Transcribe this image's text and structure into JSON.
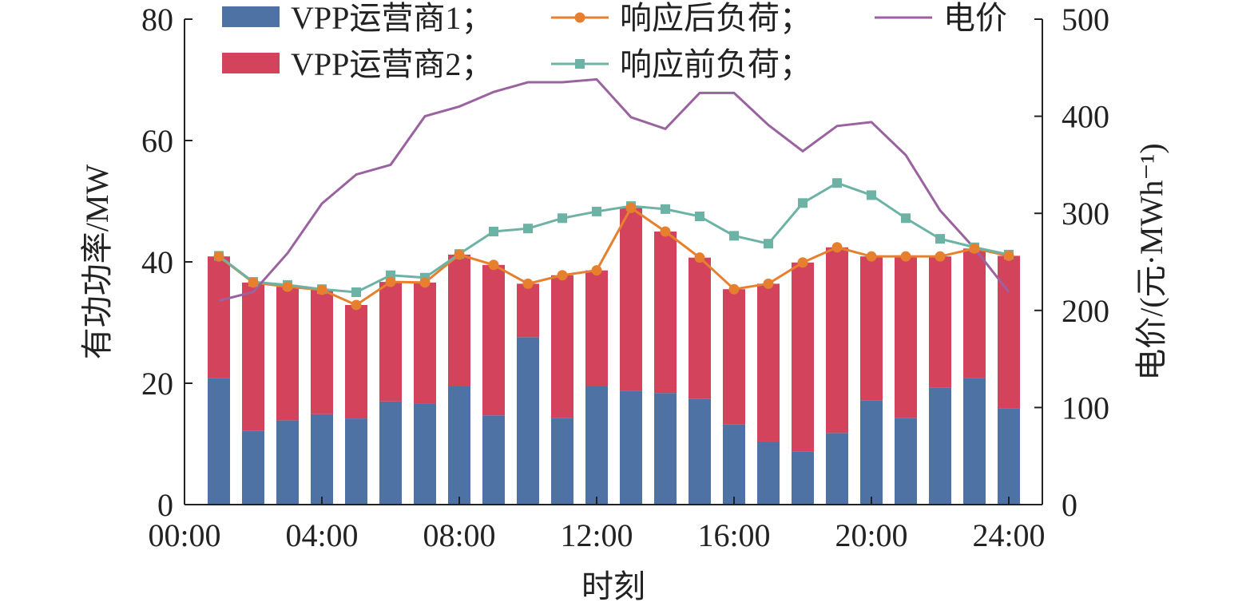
{
  "chart_data": {
    "type": "bar",
    "xlabel": "时刻",
    "ylabel": "有功功率/MW",
    "y2label": "电价/(元·MWh⁻¹)",
    "ylim": [
      0,
      80
    ],
    "y2lim": [
      0,
      500
    ],
    "yticks": [
      "0",
      "20",
      "40",
      "60",
      "80"
    ],
    "y2ticks": [
      "0",
      "100",
      "200",
      "300",
      "400",
      "500"
    ],
    "xticks": [
      "00:00",
      "04:00",
      "08:00",
      "12:00",
      "16:00",
      "20:00",
      "24:00"
    ],
    "x": [
      1,
      2,
      3,
      4,
      5,
      6,
      7,
      8,
      9,
      10,
      11,
      12,
      13,
      14,
      15,
      16,
      17,
      18,
      19,
      20,
      21,
      22,
      23,
      24
    ],
    "legend_position": "top",
    "series": [
      {
        "name": "VPP运营商1；",
        "kind": "stacked-bar",
        "axis": "left",
        "color": "#4f72a5",
        "values": [
          20.9,
          12.2,
          13.9,
          14.9,
          14.2,
          17.0,
          16.7,
          19.6,
          14.7,
          27.6,
          14.3,
          19.6,
          18.7,
          18.4,
          17.4,
          13.2,
          10.4,
          8.7,
          11.8,
          17.2,
          14.3,
          19.3,
          20.9,
          15.9
        ]
      },
      {
        "name": "VPP运营商2；",
        "kind": "stacked-bar",
        "axis": "left",
        "color": "#d3435b",
        "values": [
          20.0,
          24.4,
          22.0,
          20.5,
          18.7,
          19.7,
          19.9,
          21.6,
          24.8,
          8.8,
          23.5,
          19.0,
          30.2,
          26.6,
          23.3,
          22.3,
          26.0,
          31.2,
          30.6,
          23.7,
          26.6,
          21.6,
          21.3,
          25.1
        ]
      },
      {
        "name": "响应后负荷；",
        "kind": "line-circle",
        "axis": "left",
        "color": "#e6802f",
        "values": [
          40.9,
          36.6,
          35.9,
          35.4,
          32.9,
          36.7,
          36.6,
          41.2,
          39.5,
          36.4,
          37.8,
          38.6,
          48.9,
          45.0,
          40.7,
          35.5,
          36.4,
          39.9,
          42.4,
          40.9,
          40.9,
          40.9,
          42.2,
          41.0
        ]
      },
      {
        "name": "响应前负荷；",
        "kind": "line-square",
        "axis": "left",
        "color": "#6db3a5",
        "values": [
          41.0,
          36.7,
          36.2,
          35.5,
          35.0,
          37.8,
          37.4,
          41.3,
          45.0,
          45.5,
          47.2,
          48.3,
          49.2,
          48.7,
          47.5,
          44.3,
          43.0,
          49.7,
          53.0,
          51.0,
          47.2,
          43.8,
          42.4,
          41.2
        ]
      },
      {
        "name": "电价",
        "kind": "line",
        "axis": "right",
        "color": "#9a63a0",
        "values": [
          210,
          219,
          259,
          310,
          340,
          350,
          400,
          410,
          425,
          435,
          435,
          438,
          399,
          387,
          424,
          424,
          391,
          364,
          390,
          394,
          360,
          303,
          264,
          219
        ]
      }
    ]
  }
}
